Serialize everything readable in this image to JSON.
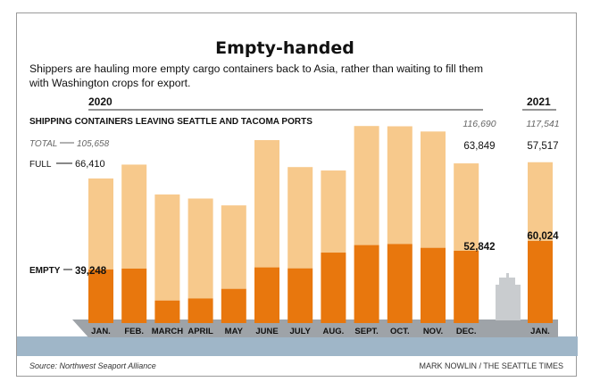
{
  "header": {
    "title": "Empty-handed",
    "subtitle_line1": "Shippers are hauling more empty cargo containers back to Asia, rather than waiting to fill them",
    "subtitle_line2": "with Washington crops for export."
  },
  "footer": {
    "source": "Source: Northwest Seaport Alliance",
    "credit": "MARK NOWLIN / THE SEATTLE TIMES"
  },
  "chart_data": {
    "type": "bar",
    "stacked": true,
    "title": "SHIPPING CONTAINERS LEAVING SEATTLE AND TACOMA PORTS",
    "year_labels": [
      "2020",
      "2021"
    ],
    "categories": [
      "JAN.",
      "FEB.",
      "MARCH",
      "APRIL",
      "MAY",
      "JUNE",
      "JULY",
      "AUG.",
      "SEPT.",
      "OCT.",
      "NOV.",
      "DEC.",
      "JAN."
    ],
    "category_years": [
      "2020",
      "2020",
      "2020",
      "2020",
      "2020",
      "2020",
      "2020",
      "2020",
      "2020",
      "2020",
      "2020",
      "2020",
      "2021"
    ],
    "series": [
      {
        "name": "EMPTY",
        "color": "#e8770d",
        "values": [
          39248,
          39800,
          16500,
          18000,
          25000,
          40700,
          40000,
          51500,
          57000,
          57800,
          55000,
          52842,
          60024
        ]
      },
      {
        "name": "FULL",
        "color": "#f7c98c",
        "values": [
          66410,
          76000,
          77500,
          73000,
          61000,
          93000,
          74000,
          60000,
          87000,
          86000,
          85000,
          63849,
          57517
        ]
      }
    ],
    "totals": [
      105658,
      115800,
      94000,
      91000,
      86000,
      133700,
      114000,
      111500,
      144000,
      143800,
      140000,
      116690,
      117541
    ],
    "ylim": [
      0,
      150000
    ],
    "annotations": {
      "total_label": "TOTAL",
      "total_value": "105,658",
      "full_label": "FULL",
      "full_value": "66,410",
      "empty_label": "EMPTY",
      "empty_value": "39,248",
      "dec_total": "116,690",
      "dec_full": "63,849",
      "dec_empty": "52,842",
      "jan21_total": "117,541",
      "jan21_full": "57,517",
      "jan21_empty": "60,024"
    },
    "ship_colors": {
      "hull": "#9ea3a8",
      "water": "#9fb6c8",
      "deck": "#c9cccf"
    }
  }
}
